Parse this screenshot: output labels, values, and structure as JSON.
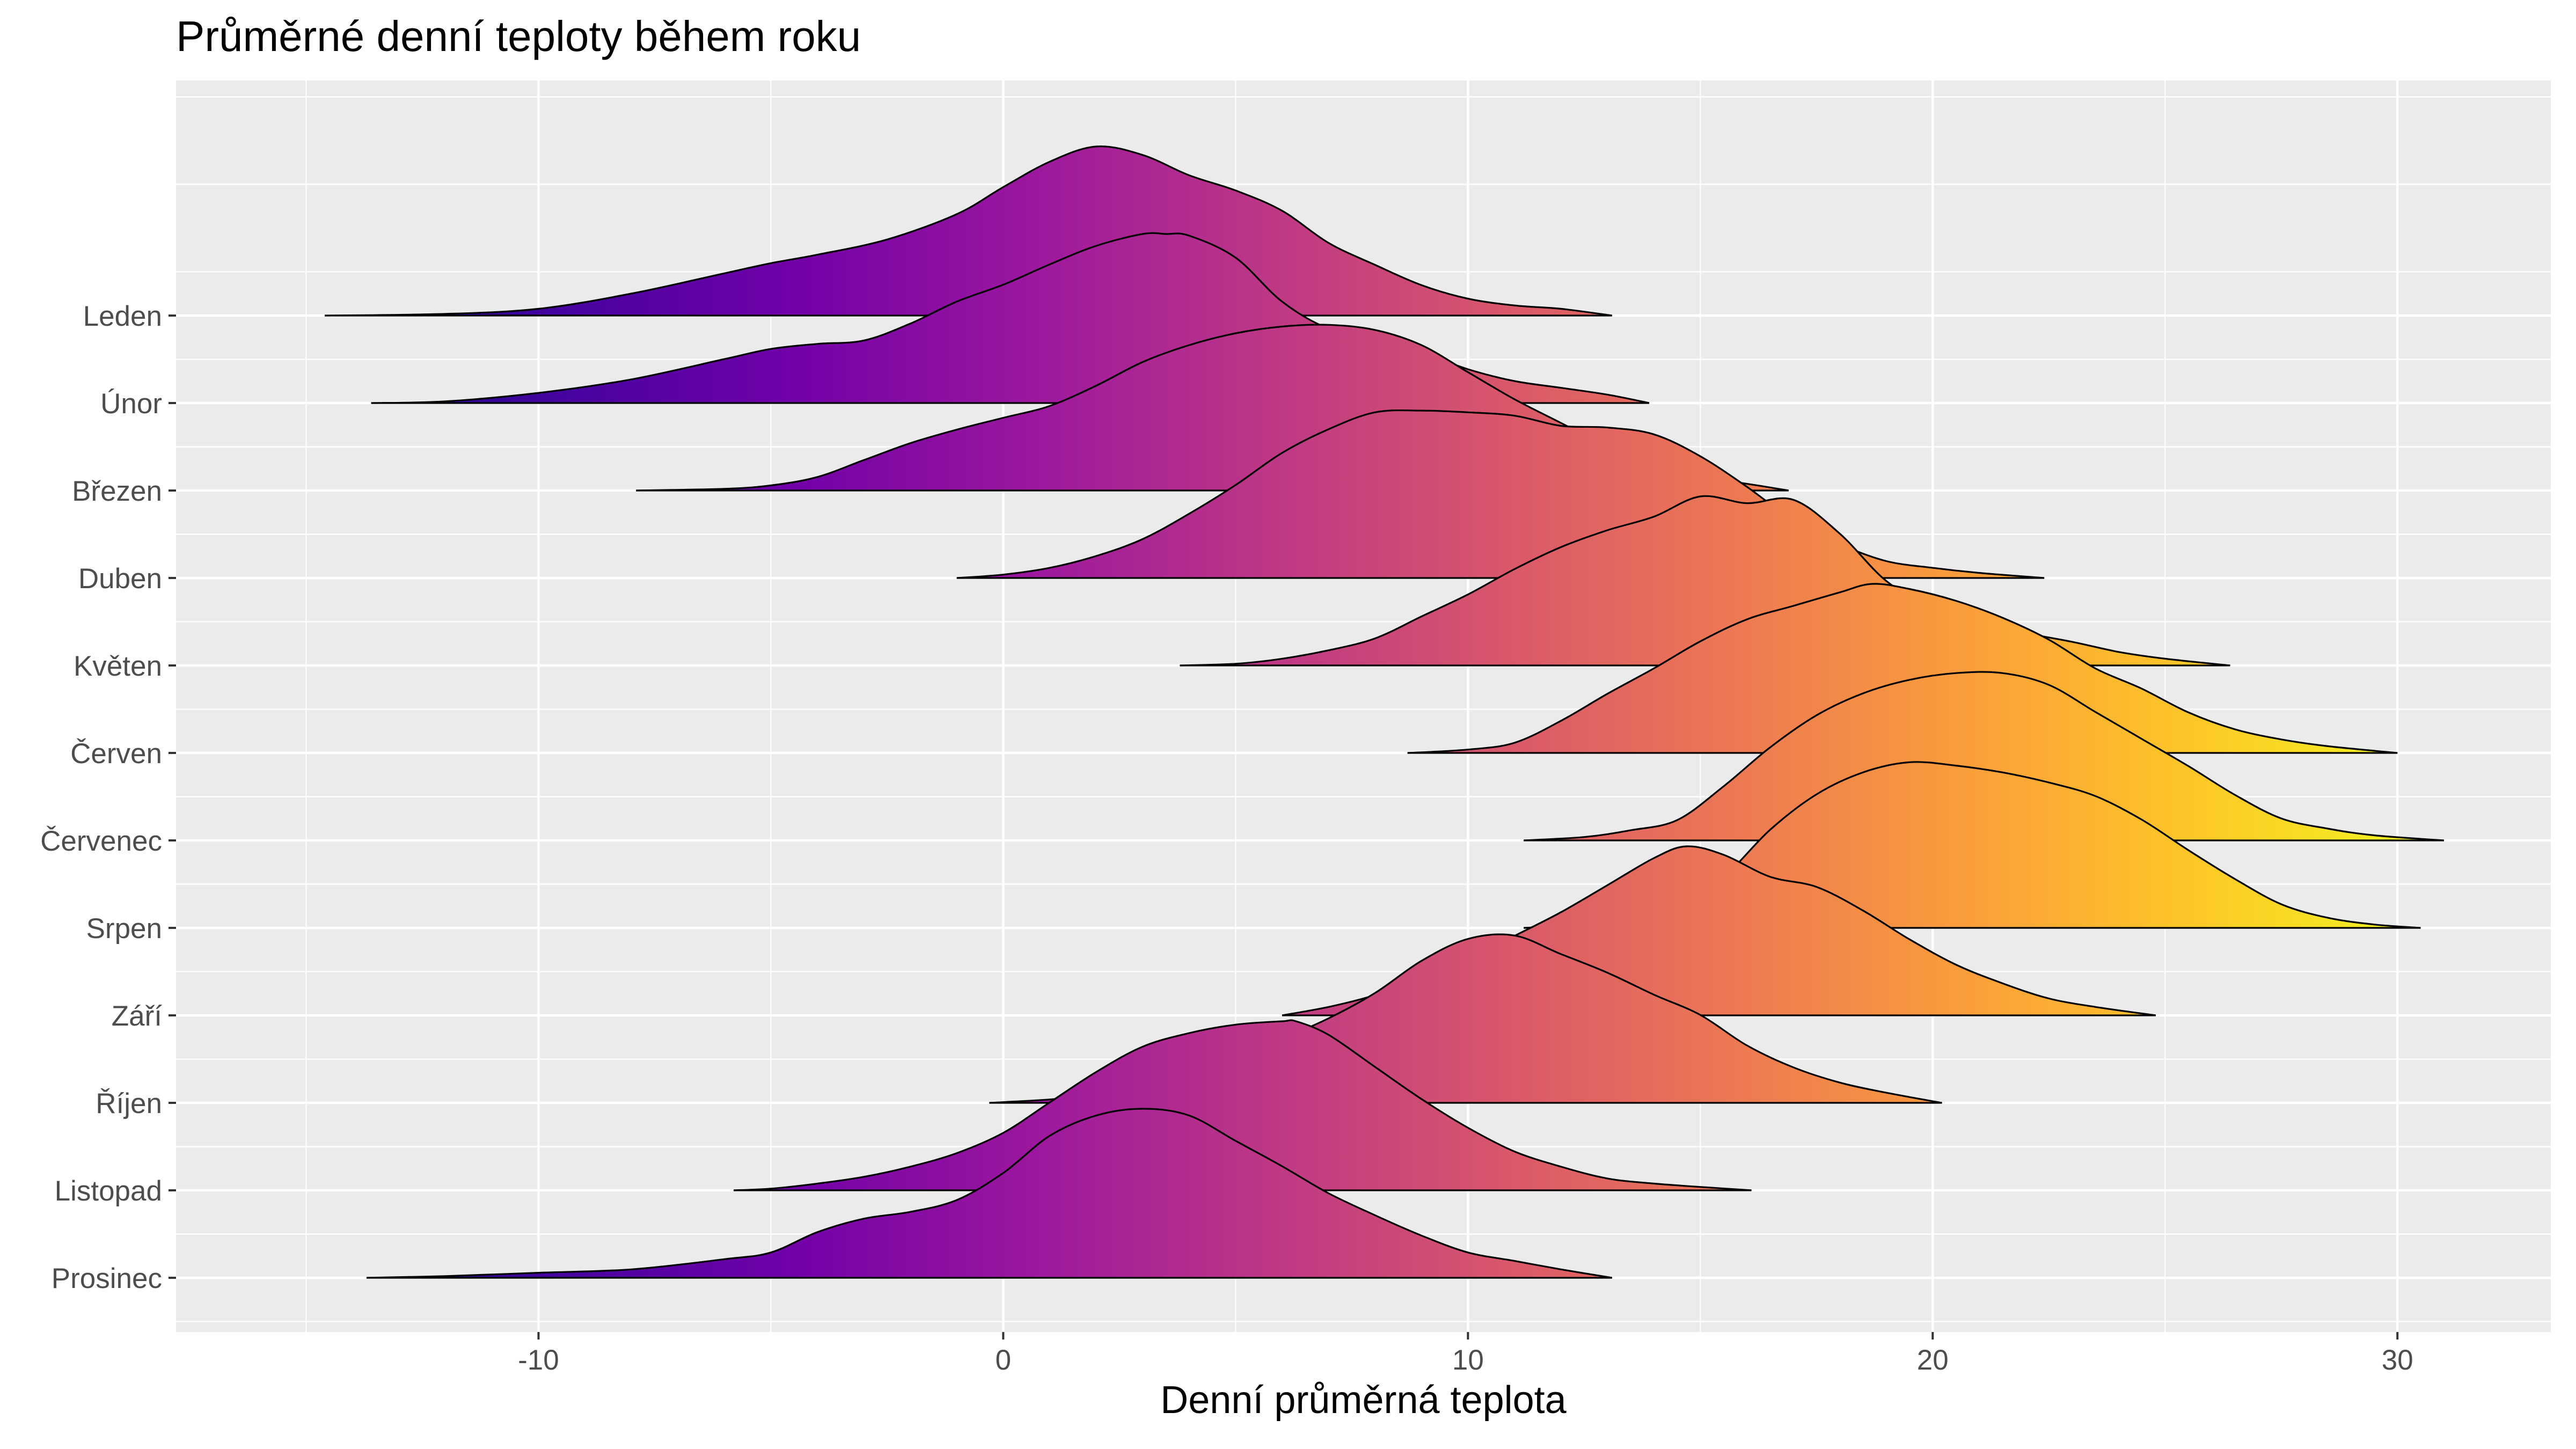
{
  "chart_data": {
    "type": "ridgeline",
    "title": "Průměrné denní teploty během roku",
    "xlabel": "Denní průměrná teplota",
    "ylabel": "",
    "xlim": [
      -17.8,
      33.3
    ],
    "xticks": [
      -10,
      0,
      10,
      20,
      30
    ],
    "x_tick_labels": [
      "-10",
      "0",
      "10",
      "20",
      "30"
    ],
    "grid": true,
    "fill_colormap": "plasma",
    "fill_color_range": [
      -14.6,
      31.0
    ],
    "fill_colors": [
      "#0d0887",
      "#46039f",
      "#7201a8",
      "#9c179e",
      "#bd3786",
      "#d8576b",
      "#ed7953",
      "#fb9f3a",
      "#fdca26",
      "#f0f921"
    ],
    "line_color": "#000000",
    "panel_background": "#ebebeb",
    "grid_color": "#ffffff",
    "series": [
      {
        "name": "Leden",
        "x": [
          -14.6,
          -12,
          -10,
          -8,
          -6,
          -5,
          -4,
          -2.5,
          -1,
          0,
          1,
          2,
          3,
          4,
          5,
          6,
          7,
          8,
          9,
          10,
          11,
          12,
          13.1
        ],
        "density": [
          0,
          0.01,
          0.04,
          0.13,
          0.25,
          0.31,
          0.36,
          0.45,
          0.6,
          0.76,
          0.91,
          1.0,
          0.95,
          0.83,
          0.74,
          0.62,
          0.43,
          0.3,
          0.18,
          0.1,
          0.06,
          0.04,
          0
        ]
      },
      {
        "name": "Únor",
        "x": [
          -13.6,
          -12,
          -10,
          -8,
          -6,
          -5,
          -4,
          -3,
          -2,
          -1,
          0,
          1,
          2,
          3,
          3.5,
          4,
          5,
          6,
          7,
          8,
          9,
          10,
          11,
          12,
          13,
          13.9
        ],
        "density": [
          0,
          0.01,
          0.06,
          0.14,
          0.26,
          0.32,
          0.35,
          0.37,
          0.47,
          0.6,
          0.7,
          0.82,
          0.93,
          1.0,
          1.0,
          0.99,
          0.86,
          0.6,
          0.44,
          0.38,
          0.3,
          0.2,
          0.13,
          0.09,
          0.05,
          0
        ]
      },
      {
        "name": "Březen",
        "x": [
          -7.9,
          -6,
          -5,
          -4,
          -3,
          -2,
          -1,
          0,
          1,
          2,
          3,
          4,
          5,
          6,
          7,
          8,
          9,
          10,
          11,
          12,
          13,
          14,
          15,
          16,
          16.9
        ],
        "density": [
          0,
          0.01,
          0.03,
          0.08,
          0.18,
          0.28,
          0.36,
          0.43,
          0.5,
          0.62,
          0.76,
          0.86,
          0.93,
          0.97,
          0.98,
          0.95,
          0.86,
          0.7,
          0.54,
          0.4,
          0.26,
          0.15,
          0.08,
          0.04,
          0
        ]
      },
      {
        "name": "Duben",
        "x": [
          -1,
          0,
          1,
          2,
          3,
          4,
          5,
          6,
          7,
          8,
          9,
          10,
          11,
          12,
          13,
          14,
          15,
          16,
          17,
          18,
          19,
          20,
          21,
          22.4
        ],
        "density": [
          0,
          0.02,
          0.06,
          0.13,
          0.23,
          0.38,
          0.55,
          0.74,
          0.88,
          0.98,
          0.99,
          0.98,
          0.96,
          0.9,
          0.89,
          0.85,
          0.72,
          0.54,
          0.34,
          0.2,
          0.1,
          0.06,
          0.03,
          0
        ]
      },
      {
        "name": "Květen",
        "x": [
          3.8,
          5,
          6,
          7,
          8,
          9,
          10,
          11,
          12,
          13,
          14,
          15,
          16,
          17,
          18,
          19,
          20,
          21,
          22,
          23,
          24,
          25,
          26.4
        ],
        "density": [
          0,
          0.01,
          0.04,
          0.09,
          0.16,
          0.29,
          0.42,
          0.57,
          0.7,
          0.8,
          0.88,
          1.0,
          0.96,
          0.98,
          0.78,
          0.5,
          0.34,
          0.24,
          0.19,
          0.14,
          0.08,
          0.04,
          0
        ]
      },
      {
        "name": "Červen",
        "x": [
          8.7,
          10,
          11,
          12,
          13,
          14,
          15,
          16,
          17,
          18,
          18.7,
          19.5,
          20.5,
          21.5,
          22.5,
          23.5,
          24.5,
          25.5,
          26.5,
          27.5,
          28.5,
          30
        ],
        "density": [
          0,
          0.02,
          0.06,
          0.19,
          0.35,
          0.5,
          0.66,
          0.79,
          0.87,
          0.95,
          1.0,
          0.97,
          0.9,
          0.8,
          0.67,
          0.5,
          0.38,
          0.24,
          0.14,
          0.08,
          0.04,
          0
        ]
      },
      {
        "name": "Červenec",
        "x": [
          11.2,
          12.5,
          13.5,
          14.5,
          15.5,
          16.5,
          17.5,
          18.5,
          19.5,
          20.5,
          21.5,
          22.5,
          23.5,
          24.5,
          25.5,
          26.5,
          27.5,
          28.5,
          29.5,
          31
        ],
        "density": [
          0,
          0.02,
          0.06,
          0.12,
          0.32,
          0.55,
          0.74,
          0.87,
          0.95,
          0.99,
          0.99,
          0.92,
          0.76,
          0.6,
          0.44,
          0.27,
          0.13,
          0.07,
          0.03,
          0
        ]
      },
      {
        "name": "Srpen",
        "x": [
          11.2,
          12.5,
          13.5,
          14.5,
          15.5,
          16.5,
          17.5,
          18.5,
          19.5,
          20.5,
          21.5,
          22.5,
          23.5,
          24.5,
          25.5,
          26.5,
          27.5,
          28.5,
          29.5,
          30.5
        ],
        "density": [
          0,
          0.02,
          0.05,
          0.12,
          0.3,
          0.58,
          0.79,
          0.92,
          0.98,
          0.96,
          0.92,
          0.86,
          0.78,
          0.64,
          0.46,
          0.29,
          0.14,
          0.06,
          0.02,
          0
        ]
      },
      {
        "name": "Září",
        "x": [
          6,
          7,
          8,
          9,
          10,
          11,
          12,
          13,
          14,
          14.7,
          15.5,
          16.5,
          17.5,
          18.5,
          19.5,
          20.5,
          21.5,
          22.5,
          23.5,
          24.8
        ],
        "density": [
          0,
          0.05,
          0.12,
          0.22,
          0.33,
          0.47,
          0.61,
          0.77,
          0.93,
          1.0,
          0.95,
          0.82,
          0.76,
          0.62,
          0.45,
          0.3,
          0.19,
          0.1,
          0.05,
          0
        ]
      },
      {
        "name": "Říjen",
        "x": [
          -0.3,
          1,
          2,
          3,
          4,
          5,
          6,
          7,
          8,
          9,
          10,
          11,
          12,
          13,
          14,
          15,
          16,
          17,
          18,
          19,
          20.2
        ],
        "density": [
          0,
          0.02,
          0.05,
          0.1,
          0.18,
          0.28,
          0.38,
          0.5,
          0.65,
          0.84,
          0.97,
          0.99,
          0.88,
          0.77,
          0.64,
          0.52,
          0.34,
          0.21,
          0.12,
          0.06,
          0
        ]
      },
      {
        "name": "Listopad",
        "x": [
          -5.8,
          -5,
          -4,
          -3,
          -2,
          -1,
          0,
          1,
          2,
          3,
          4,
          5,
          6,
          6.3,
          7,
          8,
          9,
          10,
          11,
          12,
          13,
          14,
          15,
          16.1
        ],
        "density": [
          0,
          0.01,
          0.04,
          0.08,
          0.14,
          0.22,
          0.34,
          0.52,
          0.7,
          0.85,
          0.93,
          0.98,
          1.0,
          1.0,
          0.92,
          0.73,
          0.54,
          0.37,
          0.23,
          0.14,
          0.07,
          0.04,
          0.02,
          0
        ]
      },
      {
        "name": "Prosinec",
        "x": [
          -13.7,
          -12,
          -10,
          -8,
          -6,
          -5,
          -4,
          -3,
          -2,
          -1,
          0,
          1,
          2,
          3,
          4,
          5,
          6,
          7,
          8,
          9,
          10,
          11,
          12,
          13.1
        ],
        "density": [
          0,
          0.01,
          0.03,
          0.05,
          0.11,
          0.15,
          0.27,
          0.35,
          0.39,
          0.46,
          0.62,
          0.84,
          0.96,
          1.0,
          0.96,
          0.81,
          0.66,
          0.5,
          0.37,
          0.25,
          0.15,
          0.1,
          0.05,
          0
        ]
      }
    ]
  }
}
